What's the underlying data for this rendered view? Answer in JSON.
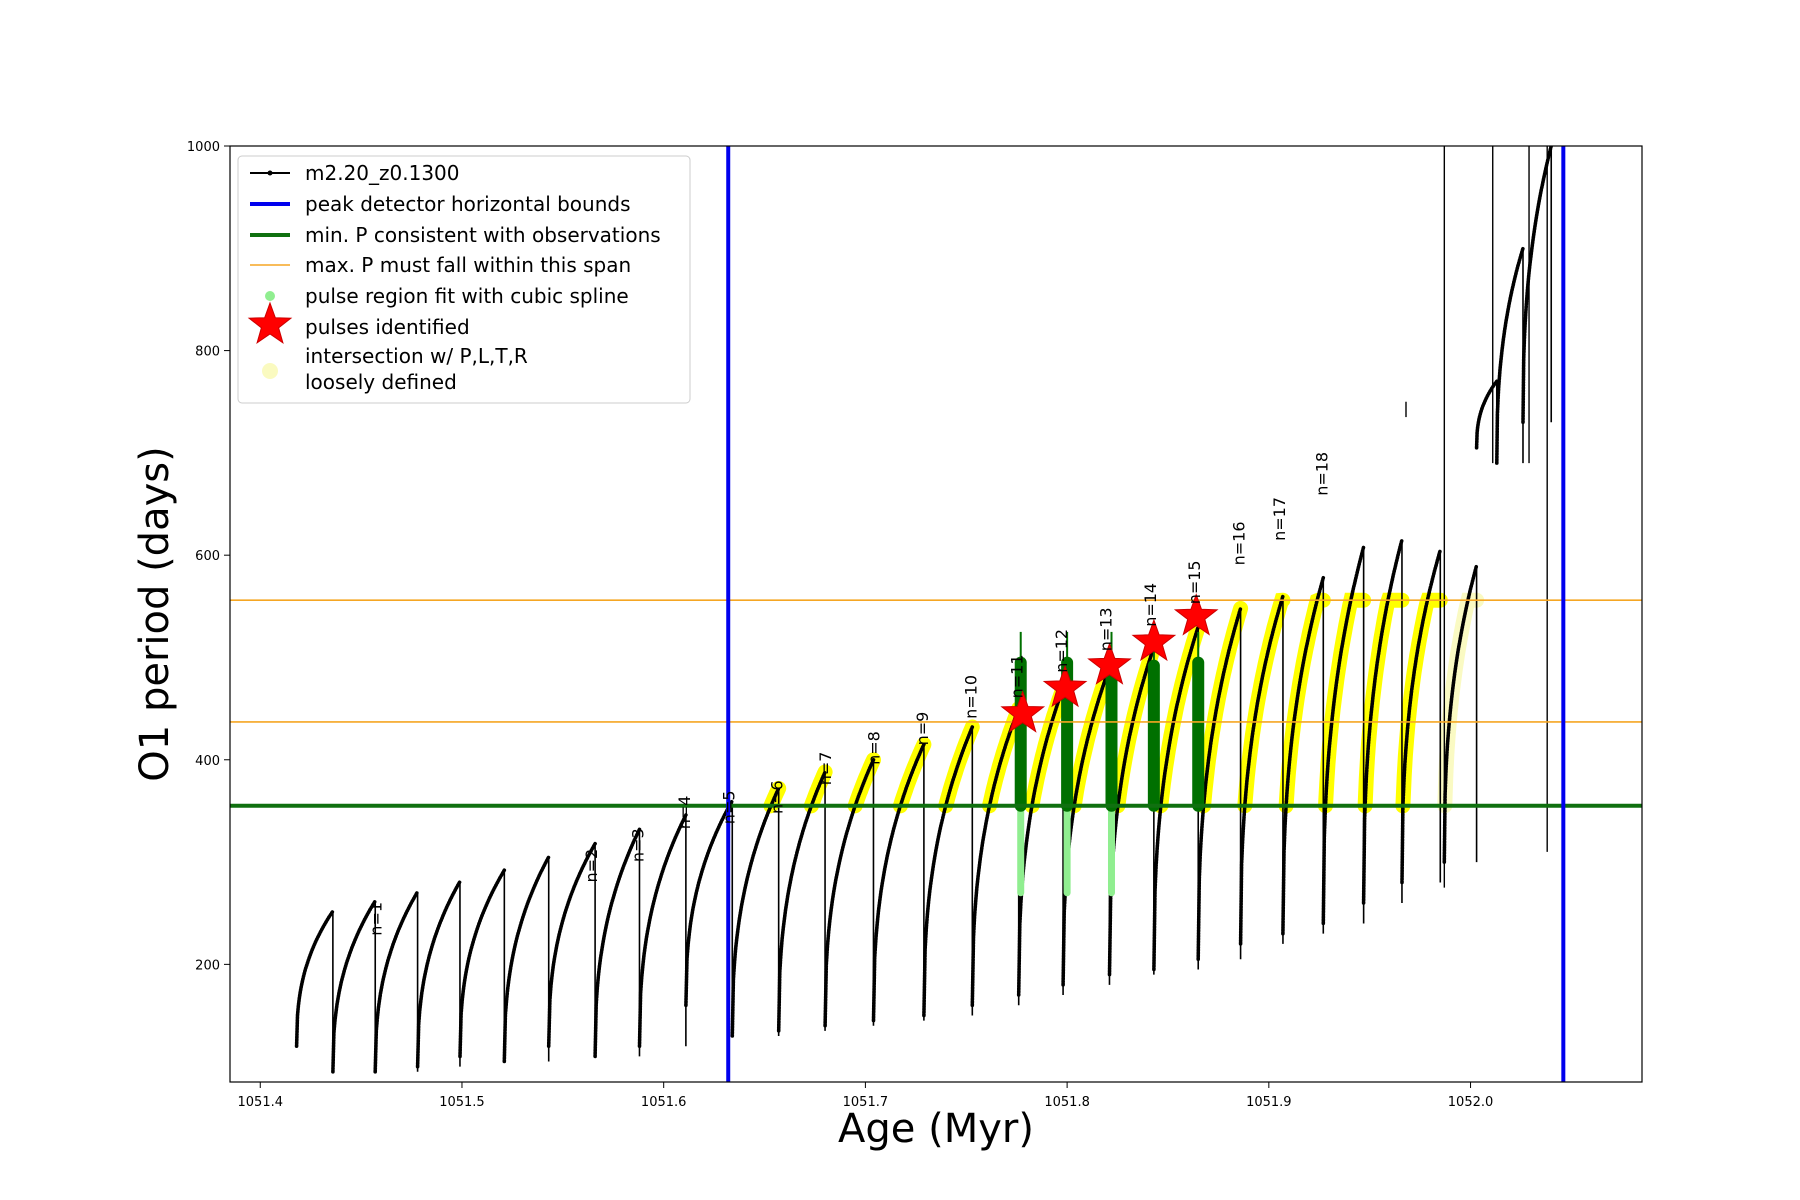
{
  "chart_data": {
    "type": "line",
    "xlabel": "Age (Myr)",
    "ylabel": "O1 period (days)",
    "xlim": [
      1051.385,
      1052.085
    ],
    "ylim": [
      85,
      1000
    ],
    "xticks": [
      1051.4,
      1051.5,
      1051.6,
      1051.7,
      1051.8,
      1051.9,
      1052.0
    ],
    "xtick_labels": [
      "1051.4",
      "1051.5",
      "1051.6",
      "1051.7",
      "1051.8",
      "1051.9",
      "1052.0"
    ],
    "yticks": [
      200,
      400,
      600,
      800,
      1000
    ],
    "ytick_labels": [
      "200",
      "400",
      "600",
      "800",
      "1000"
    ],
    "grid": false,
    "legend_position": "top-left",
    "colors": {
      "model": "#000000",
      "bounds": "#0000ee",
      "min_p": "#107010",
      "max_p": "#f5a623",
      "spline": "#90ee90",
      "star": "#ff0000",
      "intersection": "#ffff00",
      "loose": "#fafac0",
      "pulse_fit": "#007000"
    },
    "series": [
      {
        "name": "m2.20_z0.1300",
        "style": "black line with small dot markers",
        "cycles": [
          {
            "start": 1051.418,
            "end": 1051.436,
            "min": 120,
            "max": 252
          },
          {
            "start": 1051.436,
            "end": 1051.457,
            "min": 95,
            "max": 262
          },
          {
            "start": 1051.457,
            "end": 1051.478,
            "min": 95,
            "max": 271
          },
          {
            "start": 1051.478,
            "end": 1051.499,
            "min": 100,
            "max": 281
          },
          {
            "start": 1051.499,
            "end": 1051.521,
            "min": 110,
            "max": 292
          },
          {
            "start": 1051.521,
            "end": 1051.543,
            "min": 105,
            "max": 305
          },
          {
            "start": 1051.543,
            "end": 1051.566,
            "min": 120,
            "max": 318
          },
          {
            "start": 1051.566,
            "end": 1051.588,
            "min": 110,
            "max": 332
          },
          {
            "start": 1051.588,
            "end": 1051.611,
            "min": 120,
            "max": 346
          },
          {
            "start": 1051.611,
            "end": 1051.634,
            "min": 160,
            "max": 360
          },
          {
            "start": 1051.634,
            "end": 1051.657,
            "min": 130,
            "max": 372
          },
          {
            "start": 1051.657,
            "end": 1051.68,
            "min": 135,
            "max": 388
          },
          {
            "start": 1051.68,
            "end": 1051.704,
            "min": 140,
            "max": 400
          },
          {
            "start": 1051.704,
            "end": 1051.729,
            "min": 145,
            "max": 415
          },
          {
            "start": 1051.729,
            "end": 1051.753,
            "min": 150,
            "max": 432
          },
          {
            "start": 1051.753,
            "end": 1051.776,
            "min": 160,
            "max": 450
          },
          {
            "start": 1051.776,
            "end": 1051.798,
            "min": 170,
            "max": 470
          },
          {
            "start": 1051.798,
            "end": 1051.821,
            "min": 180,
            "max": 490
          },
          {
            "start": 1051.821,
            "end": 1051.843,
            "min": 190,
            "max": 510
          },
          {
            "start": 1051.843,
            "end": 1051.865,
            "min": 195,
            "max": 530
          },
          {
            "start": 1051.865,
            "end": 1051.886,
            "min": 205,
            "max": 548
          },
          {
            "start": 1051.886,
            "end": 1051.907,
            "min": 220,
            "max": 560
          },
          {
            "start": 1051.907,
            "end": 1051.927,
            "min": 230,
            "max": 578
          },
          {
            "start": 1051.927,
            "end": 1051.947,
            "min": 240,
            "max": 608
          },
          {
            "start": 1051.947,
            "end": 1051.966,
            "min": 260,
            "max": 615
          },
          {
            "start": 1051.966,
            "end": 1051.985,
            "min": 280,
            "max": 605
          },
          {
            "start": 1051.987,
            "end": 1052.003,
            "min": 300,
            "max": 590
          },
          {
            "start": 1052.003,
            "end": 1052.013,
            "min": 705,
            "max": 770
          },
          {
            "start": 1052.013,
            "end": 1052.026,
            "min": 690,
            "max": 900
          },
          {
            "start": 1052.026,
            "end": 1052.04,
            "min": 730,
            "max": 1000
          }
        ]
      },
      {
        "name": "peak detector horizontal bounds",
        "x": [
          1051.632,
          1052.046
        ]
      },
      {
        "name": "min. P consistent with observations",
        "y": 355
      },
      {
        "name": "max. P must fall within this span",
        "y": [
          437,
          556
        ]
      },
      {
        "name": "pulse region fit with cubic spline",
        "x": [
          1051.777,
          1051.8,
          1051.822
        ]
      },
      {
        "name": "pulses identified",
        "points": [
          {
            "x": 1051.778,
            "y": 445
          },
          {
            "x": 1051.799,
            "y": 470
          },
          {
            "x": 1051.821,
            "y": 492
          },
          {
            "x": 1051.843,
            "y": 515
          },
          {
            "x": 1051.864,
            "y": 540
          }
        ]
      },
      {
        "name": "intersection w/ P,L,T,R"
      },
      {
        "name": "loosely defined"
      }
    ],
    "pulse_fits": [
      {
        "x": 1051.777,
        "ymin": 355,
        "ymax": 495
      },
      {
        "x": 1051.8,
        "ymin": 355,
        "ymax": 495
      },
      {
        "x": 1051.822,
        "ymin": 355,
        "ymax": 495
      },
      {
        "x": 1051.843,
        "ymin": 355,
        "ymax": 492
      },
      {
        "x": 1051.865,
        "ymin": 355,
        "ymax": 495
      }
    ],
    "annotations": [
      {
        "text": "n=1",
        "x": 1051.46,
        "y": 228
      },
      {
        "text": "n=2",
        "x": 1051.567,
        "y": 280
      },
      {
        "text": "n=3",
        "x": 1051.59,
        "y": 300
      },
      {
        "text": "n=4",
        "x": 1051.613,
        "y": 332
      },
      {
        "text": "n=5",
        "x": 1051.635,
        "y": 337
      },
      {
        "text": "n=6",
        "x": 1051.659,
        "y": 347
      },
      {
        "text": "n=7",
        "x": 1051.683,
        "y": 375
      },
      {
        "text": "n=8",
        "x": 1051.707,
        "y": 395
      },
      {
        "text": "n=9",
        "x": 1051.731,
        "y": 414
      },
      {
        "text": "n=10",
        "x": 1051.755,
        "y": 440
      },
      {
        "text": "n=11",
        "x": 1051.778,
        "y": 460
      },
      {
        "text": "n=12",
        "x": 1051.8,
        "y": 485
      },
      {
        "text": "n=13",
        "x": 1051.822,
        "y": 506
      },
      {
        "text": "n=14",
        "x": 1051.844,
        "y": 530
      },
      {
        "text": "n=15",
        "x": 1051.866,
        "y": 552
      },
      {
        "text": "n=16",
        "x": 1051.888,
        "y": 590
      },
      {
        "text": "n=17",
        "x": 1051.908,
        "y": 614
      },
      {
        "text": "n=18",
        "x": 1051.929,
        "y": 658
      }
    ]
  }
}
